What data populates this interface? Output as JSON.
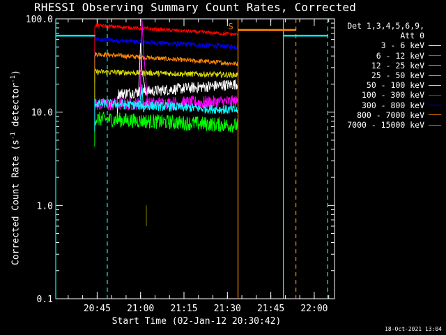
{
  "title": "RHESSI Observing Summary Count Rates, Corrected",
  "xlabel": "Start Time (02-Jan-12 20:30:42)",
  "ylabel_main": "Corrected Count Rate (s",
  "ylabel_sup": "-1",
  "ylabel_mid": " detector",
  "ylabel_end": ")",
  "timestamp": "18-Oct-2021 13:04",
  "legend_header": [
    "Det 1,3,4,5,6,9,",
    "Att 0"
  ],
  "chart_data": {
    "type": "line",
    "y_scale": "log",
    "ylim": [
      0.1,
      100.0
    ],
    "xlim": [
      "20:30:42",
      "22:07:00"
    ],
    "x_ticks": [
      "20:45",
      "21:00",
      "21:15",
      "21:30",
      "21:45",
      "22:00"
    ],
    "y_ticks": [
      "0.1",
      "1.0",
      "10.0",
      "100.0"
    ],
    "legend_position": "right",
    "marker_label": "S",
    "series": [
      {
        "name": "3 - 6 keV",
        "color": "#ffffff",
        "start": "20:44:10",
        "end": "21:33:30",
        "values_start": 15,
        "values_end": 20
      },
      {
        "name": "6 - 12 keV",
        "color": "#ff00ff",
        "start": "20:44:10",
        "end": "21:33:30",
        "values_start": 12,
        "values_end": 13
      },
      {
        "name": "12 - 25 keV",
        "color": "#00ff00",
        "start": "20:44:10",
        "end": "21:33:30",
        "values_start": 8.5,
        "values_end": 7.2
      },
      {
        "name": "25 - 50 keV",
        "color": "#00ffff",
        "start": "20:44:10",
        "end": "21:33:30",
        "values_start": 12.5,
        "values_end": 10.5
      },
      {
        "name": "50 - 100 keV",
        "color": "#dddd00",
        "start": "20:44:10",
        "end": "21:33:30",
        "values_start": 27,
        "values_end": 25
      },
      {
        "name": "100 - 300 keV",
        "color": "#ff0000",
        "start": "20:44:10",
        "end": "21:33:30",
        "values_start": 85,
        "values_end": 68
      },
      {
        "name": "300 - 800 keV",
        "color": "#0000ff",
        "start": "20:44:10",
        "end": "21:33:30",
        "values_start": 60,
        "values_end": 50
      },
      {
        "name": "800 - 7000 keV",
        "color": "#ff8800",
        "start": "20:44:10",
        "end": "21:33:30",
        "values_start": 42,
        "values_end": 33
      },
      {
        "name": "7000 - 15000 keV",
        "color": "#808000",
        "start": "21:02:00",
        "end": "21:02:40",
        "values_start": 0.6,
        "values_end": 1.0
      }
    ],
    "front_3_6_kev_from": "20:52:00",
    "spikes": [
      {
        "series": "6 - 12 keV",
        "time": "21:00:30",
        "peak": 98
      },
      {
        "series": "3 - 6 keV",
        "time": "21:00:00",
        "peak": 55
      },
      {
        "series": "25 - 50 keV",
        "time": "21:00:30",
        "peak": 20
      }
    ],
    "vertical_markers": [
      {
        "time": "20:30:42",
        "color": "#00ffff",
        "style": "solid"
      },
      {
        "time": "20:48:30",
        "color": "#00ffff",
        "style": "dashed"
      },
      {
        "time": "21:33:40",
        "color": "#ff8800",
        "style": "solid"
      },
      {
        "time": "21:49:20",
        "color": "#00ffff",
        "style": "solid"
      },
      {
        "time": "21:53:40",
        "color": "#ff8800",
        "style": "dashed"
      },
      {
        "time": "22:04:40",
        "color": "#00ffff",
        "style": "dashed"
      }
    ],
    "horizontal_segments": [
      {
        "color": "#00ffff",
        "from": "20:30:42",
        "to": "20:44:20",
        "value": 66
      },
      {
        "color": "#00ffff",
        "from": "21:49:20",
        "to": "22:04:40",
        "value": 66
      },
      {
        "color": "#ff8800",
        "from": "21:33:40",
        "to": "21:53:40",
        "value": 76
      }
    ]
  }
}
